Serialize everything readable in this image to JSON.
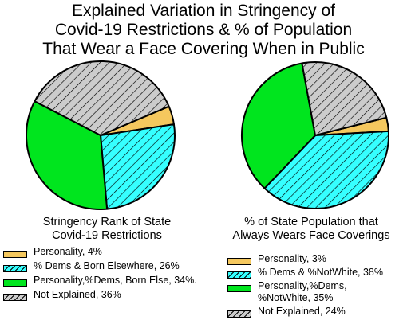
{
  "title_lines": [
    "Explained Variation in Stringency of",
    "Covid-19 Restrictions & % of Population",
    "That Wear a Face Covering When in Public"
  ],
  "colors": {
    "personality": "#f5c85e",
    "dems": "#36ffff",
    "combined": "#00e51e",
    "not_explained": "#cccccc",
    "outline": "#000000"
  },
  "chart_data": [
    {
      "type": "pie",
      "subtitle_lines": [
        "Stringency Rank of State",
        "Covid-19 Restrictions"
      ],
      "slices": [
        {
          "label": "Personality",
          "value": 4,
          "fill": "solid",
          "color": "#f5c85e"
        },
        {
          "label": "% Dems & Born Elsewhere",
          "value": 26,
          "fill": "hatch",
          "color": "#36ffff"
        },
        {
          "label": "Personality,%Dems, Born Else",
          "value": 34,
          "fill": "solid",
          "color": "#00e51e"
        },
        {
          "label": "Not Explained",
          "value": 36,
          "fill": "hatch",
          "color": "#cccccc"
        }
      ],
      "legend": [
        [
          "Personality, 4%"
        ],
        [
          "% Dems & Born Elsewhere, 26%"
        ],
        [
          "Personality,%Dems, Born Else, 34%."
        ],
        [
          "Not Explained, 36%"
        ]
      ]
    },
    {
      "type": "pie",
      "subtitle_lines": [
        "% of State Population that",
        "Always Wears Face Coverings"
      ],
      "slices": [
        {
          "label": "Personality",
          "value": 3,
          "fill": "solid",
          "color": "#f5c85e"
        },
        {
          "label": "% Dems & %NotWhite",
          "value": 38,
          "fill": "hatch",
          "color": "#36ffff"
        },
        {
          "label": "Personality,%Dems, %NotWhite",
          "value": 35,
          "fill": "solid",
          "color": "#00e51e"
        },
        {
          "label": "Not Explained",
          "value": 24,
          "fill": "hatch",
          "color": "#cccccc"
        }
      ],
      "legend": [
        [
          "Personality, 3%"
        ],
        [
          "% Dems & %NotWhite, 38%"
        ],
        [
          "Personality,%Dems,",
          "%NotWhite, 35%"
        ],
        [
          "Not Explained, 24%"
        ]
      ]
    }
  ]
}
